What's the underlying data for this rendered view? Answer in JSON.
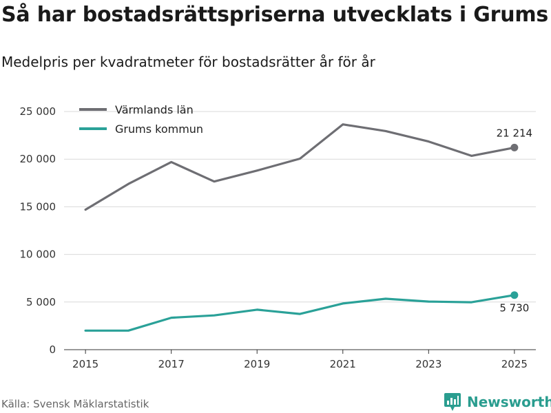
{
  "title": "Så har bostadsrättspriserna utvecklats i Grums",
  "subtitle": "Medelpris per kvadratmeter för bostadsrätter år för år",
  "source": "Källa: Svensk Mäklarstatistik",
  "brand": "Newsworthy",
  "chart_data": {
    "type": "line",
    "title": "Så har bostadsrättspriserna utvecklats i Grums",
    "subtitle": "Medelpris per kvadratmeter för bostadsrätter år för år",
    "xlabel": "",
    "ylabel": "",
    "x": [
      2015,
      2016,
      2017,
      2018,
      2019,
      2020,
      2021,
      2022,
      2023,
      2024,
      2025
    ],
    "xticks": [
      2015,
      2017,
      2019,
      2021,
      2023,
      2025
    ],
    "xtick_labels": [
      "2015",
      "2017",
      "2019",
      "2021",
      "2023",
      "2025"
    ],
    "xlim": [
      2014.5,
      2025.5
    ],
    "ylim": [
      0,
      25000
    ],
    "yticks": [
      0,
      5000,
      10000,
      15000,
      20000,
      25000
    ],
    "ytick_labels": [
      "0",
      "5 000",
      "10 000",
      "15 000",
      "20 000",
      "25 000"
    ],
    "grid": true,
    "legend_position": "top-left",
    "series": [
      {
        "name": "Värmlands län",
        "color": "#6e6e73",
        "values": [
          14700,
          17400,
          19700,
          17650,
          18800,
          20050,
          23650,
          22950,
          21850,
          20350,
          21214
        ],
        "end_label": "21 214"
      },
      {
        "name": "Grums kommun",
        "color": "#2aa198",
        "values": [
          2000,
          2000,
          3350,
          3600,
          4200,
          3750,
          4850,
          5350,
          5050,
          4980,
          5730
        ],
        "end_label": "5 730"
      }
    ]
  }
}
